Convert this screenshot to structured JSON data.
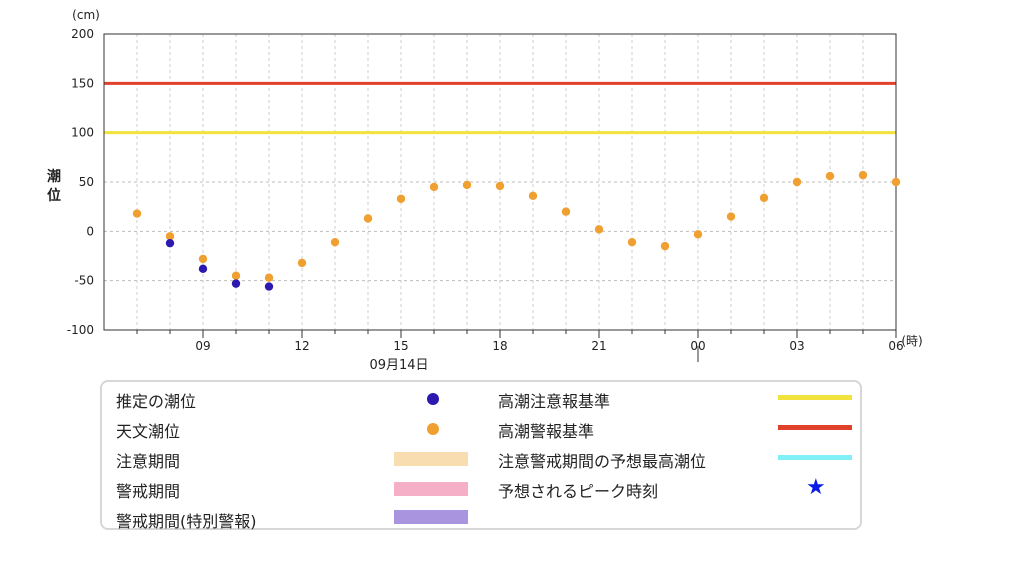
{
  "chart_data": {
    "type": "scatter",
    "ylabel": "潮位",
    "y_unit": "(cm)",
    "x_unit": "(時)",
    "ylim": [
      -100,
      200
    ],
    "yticks": [
      200,
      150,
      100,
      50,
      0,
      -50,
      -100
    ],
    "x_hours_range": [
      6,
      30
    ],
    "x_tick_hours": [
      9,
      12,
      15,
      18,
      21,
      24,
      27,
      30
    ],
    "x_tick_labels": [
      "09",
      "12",
      "15",
      "18",
      "21",
      "00",
      "03",
      "06"
    ],
    "date_label": "09月14日",
    "date_hour": 15,
    "day_boundary_hour": 24,
    "grid": true,
    "hlines": [
      {
        "name": "高潮警報基準",
        "value": 150,
        "color": "#e0412a"
      },
      {
        "name": "高潮注意報基準",
        "value": 100,
        "color": "#f2e23c"
      }
    ],
    "series": [
      {
        "name": "天文潮位",
        "color": "#f0a030",
        "x_hours": [
          7,
          8,
          9,
          10,
          11,
          12,
          13,
          14,
          15,
          16,
          17,
          18,
          19,
          20,
          21,
          22,
          23,
          24,
          25,
          26,
          27,
          28,
          29,
          30
        ],
        "values": [
          18,
          -5,
          -28,
          -45,
          -47,
          -32,
          -11,
          13,
          33,
          45,
          47,
          46,
          36,
          20,
          2,
          -11,
          -15,
          -3,
          15,
          34,
          50,
          56,
          57,
          50
        ]
      },
      {
        "name": "推定の潮位",
        "color": "#2c1ab0",
        "x_hours": [
          8,
          9,
          10,
          11
        ],
        "values": [
          -12,
          -38,
          -53,
          -56
        ]
      }
    ]
  },
  "legend": {
    "estimated": "推定の潮位",
    "astronomical": "天文潮位",
    "caution_period": "注意期間",
    "warning_period": "警戒期間",
    "special_warning_period": "警戒期間(特別警報)",
    "advisory_criterion": "高潮注意報基準",
    "warning_criterion": "高潮警報基準",
    "max_tide_forecast": "注意警戒期間の予想最高潮位",
    "peak_time": "予想されるピーク時刻",
    "colors": {
      "estimated": "#2c1ab0",
      "astronomical": "#f0a030",
      "caution_period": "#f8ddb0",
      "warning_period": "#f5b0c8",
      "special_warning_period": "#a994e0",
      "advisory_criterion": "#f2e23c",
      "warning_criterion": "#e0412a",
      "max_tide_forecast": "#7ff0f8",
      "peak_time": "#0a1be6"
    },
    "peak_icon": "star-icon",
    "peak_glyph": "★"
  }
}
